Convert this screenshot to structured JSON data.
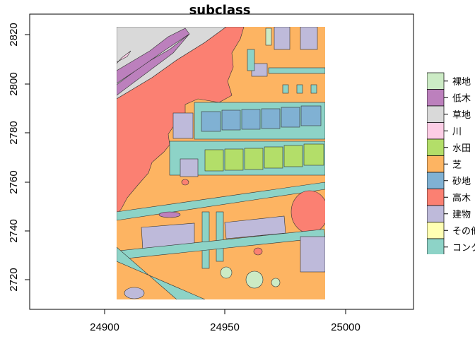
{
  "title": "subclass",
  "x_axis": {
    "ticks": [
      "24900",
      "24950",
      "25000"
    ]
  },
  "y_axis": {
    "ticks": [
      "2720",
      "2740",
      "2760",
      "2780",
      "2800",
      "2820"
    ]
  },
  "legend": {
    "items": [
      {
        "label": "裸地",
        "color": "#ccebc5"
      },
      {
        "label": "低木",
        "color": "#bc80bd"
      },
      {
        "label": "草地",
        "color": "#d9d9d9"
      },
      {
        "label": "川",
        "color": "#fccde5"
      },
      {
        "label": "水田",
        "color": "#b3de69"
      },
      {
        "label": "芝",
        "color": "#fdb462"
      },
      {
        "label": "砂地",
        "color": "#80b1d3"
      },
      {
        "label": "高木",
        "color": "#fb8072"
      },
      {
        "label": "建物",
        "color": "#bebada"
      },
      {
        "label": "その他",
        "color": "#ffffb3"
      },
      {
        "label": "コンクリート",
        "color": "#8dd3c7"
      }
    ]
  }
}
